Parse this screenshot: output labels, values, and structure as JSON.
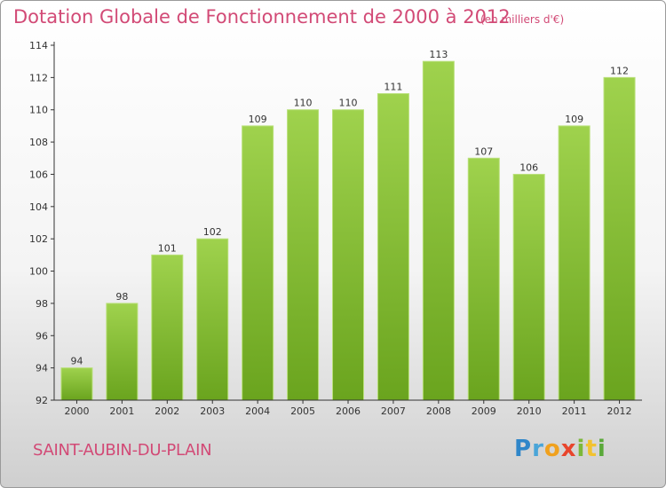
{
  "title": "Dotation Globale de Fonctionnement de 2000 à 2012",
  "unit_note": "(en milliers d'€)",
  "commune": "SAINT-AUBIN-DU-PLAIN",
  "logo": "Proxiti",
  "colors": {
    "title": "#d24a76",
    "bar_light": "#9fd24d",
    "bar_dark": "#6aa41e",
    "axis": "#333333"
  },
  "chart_data": {
    "type": "bar",
    "title": "Dotation Globale de Fonctionnement de 2000 à 2012",
    "xlabel": "",
    "ylabel": "",
    "categories": [
      "2000",
      "2001",
      "2002",
      "2003",
      "2004",
      "2005",
      "2006",
      "2007",
      "2008",
      "2009",
      "2010",
      "2011",
      "2012"
    ],
    "values": [
      94,
      98,
      101,
      102,
      109,
      110,
      110,
      111,
      113,
      107,
      106,
      109,
      112
    ],
    "ylim": [
      92,
      114
    ],
    "yticks": [
      92,
      94,
      96,
      98,
      100,
      102,
      104,
      106,
      108,
      110,
      112,
      114
    ],
    "grid": false,
    "legend": "none"
  }
}
